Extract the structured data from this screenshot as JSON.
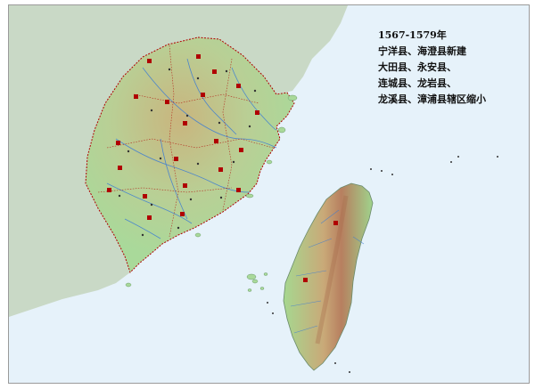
{
  "legend": {
    "year_range": "1567-1579年",
    "lines": [
      "宁洋县、海澄县新建",
      "大田县、永安县、",
      "连城县、龙岩县、",
      "龙溪县、漳浦县辖区缩小"
    ]
  },
  "colors": {
    "sea": "#e6f2fa",
    "outside_land": "#c7d8c7",
    "fujian_lowland": "#a9d99a",
    "fujian_highland": "#d9c58e",
    "border": "#b00000",
    "rivers": "#3a7bd5",
    "taiwan_lowland": "#9fd38c",
    "taiwan_mountain": "#c98e6a",
    "label_red": "#b00000"
  },
  "icons": [
    "island-label-markers",
    "county-seat-dots"
  ]
}
